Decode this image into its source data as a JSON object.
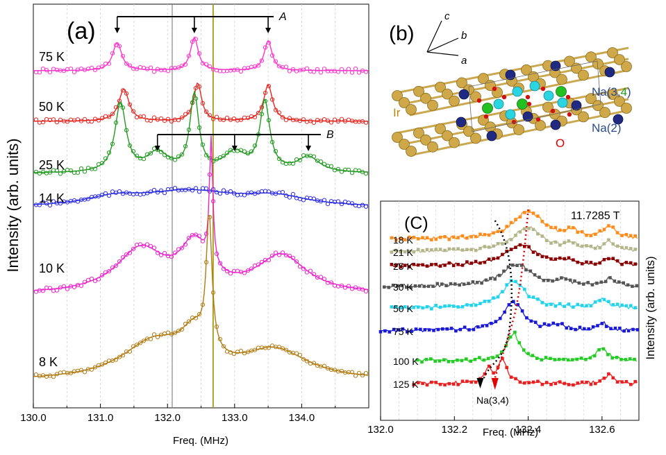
{
  "panel_a": {
    "panel_label": "(a)",
    "ylabel": "Intensity (arb. units)",
    "xlabel": "Freq. (MHz)",
    "xticks": [
      "130.0",
      "131.0",
      "132.0",
      "133.0",
      "134.0"
    ],
    "xlim": [
      130.0,
      135.0
    ],
    "vline_gray": 132.07,
    "vline_olive": 132.68,
    "marker_A": {
      "label": "A",
      "positions": [
        131.25,
        132.4,
        133.5
      ]
    },
    "marker_B": {
      "label": "B",
      "positions": [
        131.85,
        133.0,
        134.1
      ]
    },
    "colors": {
      "75 K": "#ff33cc",
      "50 K": "#e8251f",
      "25 K": "#1f9a1f",
      "14 K": "#2a2ae6",
      "10 K": "#ee22cc",
      "8 K": "#b07a10"
    }
  },
  "panel_b": {
    "panel_label": "(b)",
    "axis_a": "a",
    "axis_b": "b",
    "axis_c": "c",
    "label_ir": "Ir",
    "label_o": "O",
    "label_na2": "Na(2)",
    "label_na34_prefix": "Na(3,",
    "label_na34_four": "4",
    "label_na34_suffix": ")"
  },
  "panel_c": {
    "panel_label": "(C)",
    "field": "11.7285 T",
    "ylabel": "Intensity (arb. units)",
    "xlabel": "Freq. (MHz)",
    "xticks": [
      "132.0",
      "132.2",
      "132.4",
      "132.6"
    ],
    "xlim": [
      132.0,
      132.7
    ],
    "arrow_label": "Na(3,4)",
    "colors": {
      "18 K": "#ff8c1a",
      "21 K": "#b5b58a",
      "25 K": "#8b0000",
      "30 K": "#555555",
      "50 K": "#22d3ee",
      "75 K": "#1a1ad6",
      "100 K": "#22cc22",
      "125 K": "#e82020"
    }
  },
  "chart_data": [
    {
      "type": "line",
      "title": "(a)",
      "xlabel": "Freq. (MHz)",
      "ylabel": "Intensity (arb. units)",
      "xlim": [
        130.0,
        135.0
      ],
      "series": [
        {
          "name": "75 K",
          "peaks": [
            [
              131.25,
              0.85,
              0.08
            ],
            [
              132.4,
              1.0,
              0.07
            ],
            [
              133.5,
              0.9,
              0.07
            ]
          ]
        },
        {
          "name": "50 K",
          "peaks": [
            [
              131.35,
              0.85,
              0.09
            ],
            [
              132.45,
              1.0,
              0.07
            ],
            [
              133.5,
              0.95,
              0.08
            ]
          ]
        },
        {
          "name": "25 K",
          "peaks": [
            [
              131.3,
              0.9,
              0.1
            ],
            [
              132.4,
              1.0,
              0.08
            ],
            [
              133.45,
              0.9,
              0.09
            ],
            [
              131.85,
              0.25,
              0.2
            ],
            [
              133.0,
              0.25,
              0.2
            ],
            [
              134.1,
              0.2,
              0.2
            ]
          ]
        },
        {
          "name": "14 K",
          "peaks": [
            [
              132.3,
              0.5,
              0.9
            ],
            [
              133.6,
              0.3,
              0.6
            ],
            [
              131.2,
              0.25,
              0.5
            ]
          ]
        },
        {
          "name": "10 K",
          "peaks": [
            [
              132.65,
              1.0,
              0.03
            ],
            [
              131.6,
              0.35,
              0.45
            ],
            [
              133.7,
              0.3,
              0.45
            ],
            [
              132.4,
              0.35,
              0.25
            ]
          ]
        },
        {
          "name": "8 K",
          "peaks": [
            [
              132.62,
              1.0,
              0.05
            ],
            [
              131.8,
              0.28,
              0.6
            ],
            [
              133.6,
              0.22,
              0.6
            ],
            [
              132.4,
              0.25,
              0.25
            ]
          ]
        }
      ]
    },
    {
      "type": "line",
      "title": "(C)",
      "xlabel": "Freq. (MHz)",
      "ylabel": "Intensity (arb. units)",
      "xlim": [
        132.0,
        132.7
      ],
      "series": [
        {
          "name": "18 K",
          "peaks": [
            [
              132.4,
              1.0,
              0.05
            ],
            [
              132.62,
              0.45,
              0.02
            ],
            [
              132.52,
              0.25,
              0.02
            ]
          ]
        },
        {
          "name": "21 K",
          "peaks": [
            [
              132.4,
              1.0,
              0.05
            ],
            [
              132.62,
              0.4,
              0.02
            ],
            [
              132.52,
              0.25,
              0.02
            ]
          ]
        },
        {
          "name": "25 K",
          "peaks": [
            [
              132.38,
              1.0,
              0.05
            ],
            [
              132.62,
              0.35,
              0.02
            ],
            [
              132.5,
              0.2,
              0.02
            ]
          ]
        },
        {
          "name": "30 K",
          "peaks": [
            [
              132.37,
              1.0,
              0.05
            ],
            [
              132.62,
              0.3,
              0.02
            ],
            [
              132.5,
              0.2,
              0.02
            ]
          ]
        },
        {
          "name": "50 K",
          "peaks": [
            [
              132.36,
              1.0,
              0.04
            ],
            [
              132.6,
              0.3,
              0.02
            ]
          ]
        },
        {
          "name": "75 K",
          "peaks": [
            [
              132.36,
              1.0,
              0.035
            ],
            [
              132.6,
              0.3,
              0.015
            ],
            [
              132.48,
              0.2,
              0.02
            ]
          ]
        },
        {
          "name": "100 K",
          "peaks": [
            [
              132.36,
              1.0,
              0.02
            ],
            [
              132.6,
              0.45,
              0.02
            ]
          ]
        },
        {
          "name": "125 K",
          "peaks": [
            [
              132.33,
              1.0,
              0.015
            ],
            [
              132.29,
              0.6,
              0.01
            ],
            [
              132.62,
              0.35,
              0.015
            ]
          ]
        }
      ]
    }
  ]
}
